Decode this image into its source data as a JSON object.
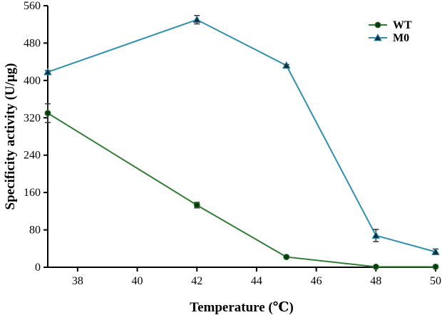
{
  "chart_data": {
    "type": "line",
    "xlabel": "Temperature (℃)",
    "ylabel": "Specificity activity (U/μg)",
    "xlim": [
      37,
      50
    ],
    "ylim": [
      0,
      560
    ],
    "xticks": [
      38,
      40,
      42,
      44,
      46,
      48,
      50
    ],
    "yticks": [
      0,
      80,
      160,
      240,
      320,
      400,
      480,
      560
    ],
    "legend_position": "top-right",
    "grid": false,
    "series": [
      {
        "name": "WT",
        "marker": "circle",
        "color": "#2e7d32",
        "x": [
          37,
          42,
          45,
          48,
          50
        ],
        "y": [
          330,
          133,
          22,
          1,
          1
        ],
        "error": [
          20,
          6,
          2,
          0,
          0
        ]
      },
      {
        "name": "M0",
        "marker": "triangle",
        "color": "#2e8fae",
        "x": [
          37,
          42,
          45,
          48,
          50
        ],
        "y": [
          418,
          530,
          432,
          68,
          33
        ],
        "error": [
          3,
          9,
          2,
          13,
          6
        ]
      }
    ]
  }
}
